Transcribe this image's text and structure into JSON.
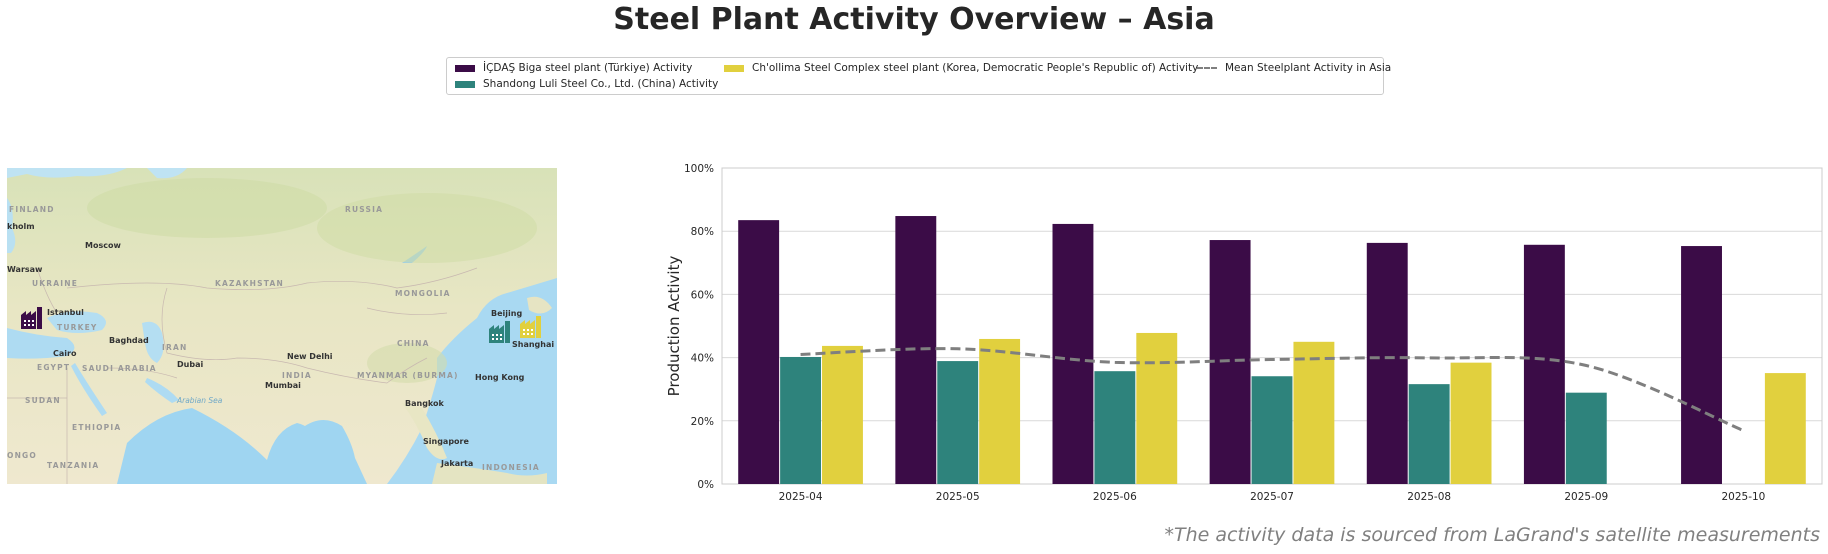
{
  "title": "Steel Plant Activity Overview – Asia",
  "legend": {
    "items": [
      {
        "label": "İÇDAŞ Biga steel plant (Türkiye) Activity",
        "color": "#3b0c47",
        "type": "bar"
      },
      {
        "label": "Shandong Luli Steel Co., Ltd. (China) Activity",
        "color": "#2e837c",
        "type": "bar"
      },
      {
        "label": "Ch'ollima Steel Complex steel plant (Korea, Democratic People's Republic of) Activity",
        "color": "#e1d03e",
        "type": "bar"
      },
      {
        "label": "Mean Steelplant Activity in Asia",
        "color": "#7f7f7f",
        "type": "dashed-line"
      }
    ]
  },
  "map": {
    "region": "Asia",
    "labels": [
      {
        "text": "FINLAND",
        "kind": "country"
      },
      {
        "text": "RUSSIA",
        "kind": "country"
      },
      {
        "text": "kholm",
        "kind": "city"
      },
      {
        "text": "Moscow",
        "kind": "city"
      },
      {
        "text": "Warsaw",
        "kind": "city"
      },
      {
        "text": "UKRAINE",
        "kind": "country"
      },
      {
        "text": "KAZAKHSTAN",
        "kind": "country"
      },
      {
        "text": "MONGOLIA",
        "kind": "country"
      },
      {
        "text": "Istanbul",
        "kind": "city"
      },
      {
        "text": "TURKEY",
        "kind": "country"
      },
      {
        "text": "Beijing",
        "kind": "city"
      },
      {
        "text": "Baghdad",
        "kind": "city"
      },
      {
        "text": "IRAN",
        "kind": "country"
      },
      {
        "text": "CHINA",
        "kind": "country"
      },
      {
        "text": "Shanghai",
        "kind": "city"
      },
      {
        "text": "Cairo",
        "kind": "city"
      },
      {
        "text": "New Delhi",
        "kind": "city"
      },
      {
        "text": "EGYPT",
        "kind": "country"
      },
      {
        "text": "SAUDI ARABIA",
        "kind": "country"
      },
      {
        "text": "Dubai",
        "kind": "city"
      },
      {
        "text": "INDIA",
        "kind": "country"
      },
      {
        "text": "MYANMAR (BURMA)",
        "kind": "country"
      },
      {
        "text": "Hong Kong",
        "kind": "city"
      },
      {
        "text": "Mumbai",
        "kind": "city"
      },
      {
        "text": "SUDAN",
        "kind": "country"
      },
      {
        "text": "Arabian Sea",
        "kind": "sea"
      },
      {
        "text": "Bangkok",
        "kind": "city"
      },
      {
        "text": "ETHIOPIA",
        "kind": "country"
      },
      {
        "text": "Singapore",
        "kind": "city"
      },
      {
        "text": "Jakarta",
        "kind": "city"
      },
      {
        "text": "INDONESIA",
        "kind": "country"
      },
      {
        "text": "TANZANIA",
        "kind": "country"
      },
      {
        "text": "ONGO",
        "kind": "country"
      }
    ],
    "markers": [
      {
        "name": "icdas-biga-marker",
        "plant": "İÇDAŞ Biga",
        "color": "#3b0c47",
        "icon": "factory-icon"
      },
      {
        "name": "shandong-luli-marker",
        "plant": "Shandong Luli",
        "color": "#2e837c",
        "icon": "factory-icon"
      },
      {
        "name": "chollima-marker",
        "plant": "Ch'ollima",
        "color": "#e1d03e",
        "icon": "factory-icon"
      }
    ]
  },
  "chart_data": {
    "type": "bar",
    "title": "",
    "xlabel": "",
    "ylabel": "Production Activity",
    "ylim": [
      0,
      100
    ],
    "yticks": [
      "0%",
      "20%",
      "40%",
      "60%",
      "80%",
      "100%"
    ],
    "ytick_values": [
      0,
      20,
      40,
      60,
      80,
      100
    ],
    "grid": true,
    "legend_position": "top-center",
    "categories": [
      "2025-04",
      "2025-05",
      "2025-06",
      "2025-07",
      "2025-08",
      "2025-09",
      "2025-10"
    ],
    "series": [
      {
        "name": "İÇDAŞ Biga steel plant (Türkiye) Activity",
        "color": "#3b0c47",
        "values": [
          83.5,
          84.8,
          82.3,
          77.2,
          76.3,
          75.7,
          75.3
        ]
      },
      {
        "name": "Shandong Luli Steel Co., Ltd. (China) Activity",
        "color": "#2e837c",
        "values": [
          40.2,
          38.9,
          35.7,
          34.1,
          31.6,
          28.9,
          null
        ]
      },
      {
        "name": "Ch'ollima Steel Complex steel plant (Korea, Democratic People's Republic of) Activity",
        "color": "#e1d03e",
        "values": [
          43.7,
          45.9,
          47.8,
          45.0,
          38.4,
          null,
          35.1
        ]
      }
    ],
    "line_series": {
      "name": "Mean Steelplant Activity in Asia",
      "color": "#7f7f7f",
      "style": "dashed",
      "values": [
        41.0,
        42.8,
        38.5,
        39.4,
        39.9,
        37.5,
        16.9
      ]
    }
  },
  "footnote": "*The activity data is sourced from LaGrand's satellite measurements"
}
